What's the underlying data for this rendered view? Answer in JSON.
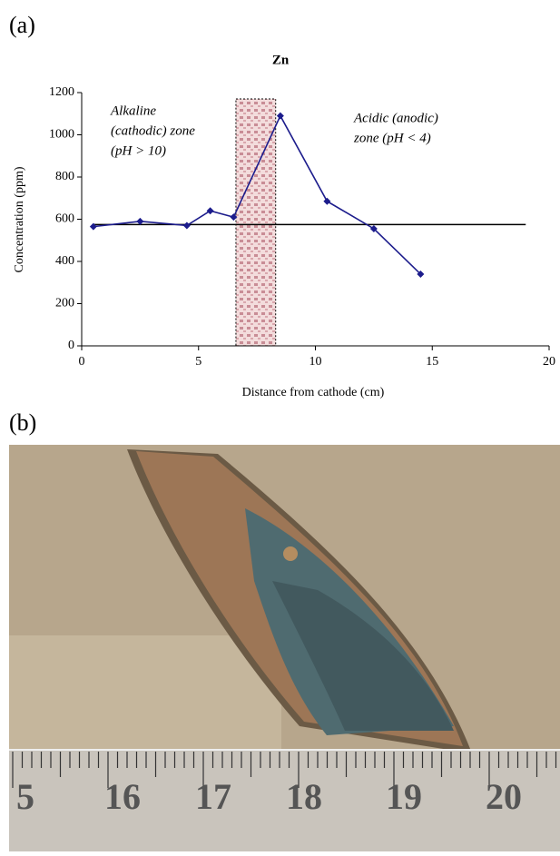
{
  "panel_labels": [
    "(a)",
    "(b)"
  ],
  "chart_data": {
    "type": "line",
    "title": "Zn",
    "x_label": "Distance from cathode (cm)",
    "y_label": "Concentration (ppm)",
    "x": [
      0.5,
      2.5,
      4.5,
      5.5,
      6.5,
      8.5,
      10.5,
      12.5,
      14.5
    ],
    "series": [
      {
        "name": "Zn",
        "color": "#1c1c8c",
        "values": [
          565,
          590,
          570,
          640,
          610,
          1090,
          685,
          555,
          340
        ]
      }
    ],
    "xlim": [
      0,
      20
    ],
    "xticks": [
      0,
      5,
      10,
      15,
      20
    ],
    "ylim": [
      0,
      1200
    ],
    "yticks": [
      0,
      200,
      400,
      600,
      800,
      1000,
      1200
    ],
    "reference_line": {
      "value": 575,
      "x": [
        0.5,
        19
      ]
    },
    "highlight_band": {
      "x": [
        6.6,
        8.3
      ],
      "top": 1170
    },
    "annotations": [
      [
        "Alkaline",
        "(cathodic) zone",
        "(pH > 10)"
      ],
      [
        "Acidic (anodic)",
        "zone (pH < 4)"
      ]
    ]
  },
  "photo": {
    "ruler_labels": [
      "5",
      "16",
      "17",
      "18",
      "19",
      "20"
    ]
  }
}
